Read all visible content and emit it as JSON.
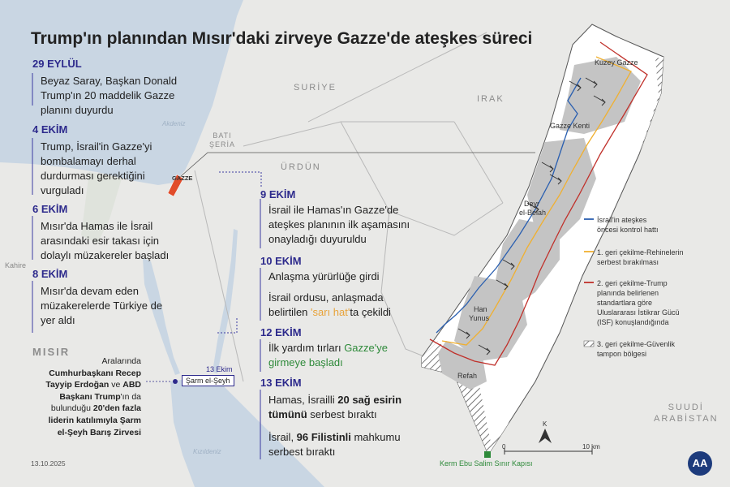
{
  "title": "Trump'ın planından Mısır'daki zirveye Gazze'de ateşkes süreci",
  "timeline_left": [
    {
      "date": "29 EYLÜL",
      "text": [
        "Beyaz Saray, Başkan Donald",
        "Trump'ın 20 maddelik Gazze",
        "planını duyurdu"
      ]
    },
    {
      "date": "4 EKİM",
      "text": [
        "Trump, İsrail'in Gazze'yi",
        "bombalamayı derhal",
        "durdurması gerektiğini",
        "vurguladı"
      ]
    },
    {
      "date": "6 EKİM",
      "text": [
        "Mısır'da Hamas ile İsrail",
        "arasındaki esir takası için",
        "dolaylı müzakereler başladı"
      ]
    },
    {
      "date": "8 EKİM",
      "text": [
        "Mısır'da devam eden",
        "müzakerelerde Türkiye de",
        "yer aldı"
      ]
    }
  ],
  "timeline_mid": {
    "d9": {
      "date": "9 EKİM",
      "text": [
        "İsrail ile Hamas'ın Gazze'de",
        "ateşkes planının ilk aşamasını",
        "onayladığı duyuruldu"
      ]
    },
    "d10": {
      "date": "10 EKİM",
      "line1": "Anlaşma yürürlüğe girdi",
      "line2": "İsrail ordusu, anlaşmada",
      "line3_pre": "belirtilen ",
      "line3_hl": "'sarı hat'",
      "line3_post": "ta çekildi"
    },
    "d12": {
      "date": "12 EKİM",
      "pre": "İlk yardım tırları ",
      "hl1": "Gazze'ye",
      "hl2": "girmeye başladı"
    },
    "d13": {
      "date": "13 EKİM",
      "a1": "Hamas, İsrailli ",
      "a_bold": "20 sağ esirin",
      "a2_bold": "tümünü",
      "a2": " serbest bıraktı",
      "b1": "İsrail, ",
      "b_bold": "96 Filistinli",
      "b2": " mahkumu",
      "b3": "serbest bıraktı"
    }
  },
  "summit": {
    "l1": "Aralarında",
    "l2_bold": "Cumhurbaşkanı Recep",
    "l3_bold": "Tayyip Erdoğan",
    "l3": " ve ",
    "l3b_bold": "ABD",
    "l4_bold": "Başkanı Trump",
    "l4": "'ın da",
    "l5": "bulunduğu ",
    "l5_bold": "20'den fazla",
    "l6_bold": "liderin katılımıyla Şarm",
    "l7_bold": "el-Şeyh Barış Zirvesi"
  },
  "map_labels": {
    "suriye": "SURİYE",
    "irak": "IRAK",
    "urdun": "ÜRDÜN",
    "misir": "MISIR",
    "suudi1": "SUUDİ",
    "suudi2": "ARABİSTAN",
    "bati1": "BATI",
    "bati2": "ŞERİA",
    "akdeniz": "Akdeniz",
    "kizildeniz": "Kızıldeniz",
    "kahire": "Kahire",
    "gazze_small": "GAZZE",
    "sarm_date": "13 Ekim",
    "sarm": "Şarm el-Şeyh"
  },
  "gaza_labels": {
    "kuzey": "Kuzey Gazze",
    "kent": "Gazze Kenti",
    "deyr1": "Deyr",
    "deyr2": "el-Belah",
    "han1": "Han",
    "han2": "Yunus",
    "refah": "Refah",
    "kerm": "Kerm Ebu Salim Sınır Kapısı",
    "north": "K",
    "scale0": "0",
    "scale10": "10 km"
  },
  "legend": [
    {
      "color": "#2a5fb0",
      "style": "line",
      "lines": [
        "İsrail'in ateşkes",
        "öncesi kontrol hattı"
      ]
    },
    {
      "color": "#f0b030",
      "style": "line",
      "lines": [
        "1. geri çekilme-Rehinelerin",
        "serbest bırakılması"
      ]
    },
    {
      "color": "#c0302a",
      "style": "line",
      "lines": [
        "2. geri çekilme-Trump",
        "planında belirlenen",
        "standartlara göre",
        "Uluslararası İstikrar Gücü",
        "(ISF) konuşlandığında"
      ]
    },
    {
      "color": "#555555",
      "style": "hatch",
      "lines": [
        "3. geri çekilme-Güvenlik",
        "tampon bölgesi"
      ]
    }
  ],
  "footer_date": "13.10.2025",
  "agency": "AA",
  "colors": {
    "accent": "#2d2a8c",
    "green": "#2e8a3a",
    "yellow": "#e8a33a",
    "sea": "#c9d6e3",
    "land": "#e9e9e7"
  }
}
